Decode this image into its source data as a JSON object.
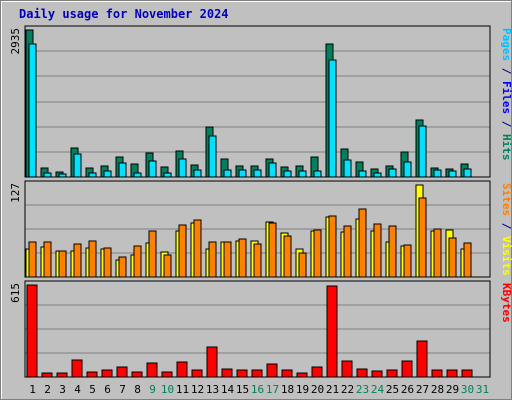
{
  "title": "Daily usage for November 2024",
  "colors": {
    "background": "#c0c0c0",
    "plot_bg": "#c0c0c0",
    "grid": "#808080",
    "hits": "#00805c",
    "files": "#00e0ff",
    "sites": "#ff8000",
    "visits": "#ffff00",
    "kbytes": "#ff0000",
    "weekday_label": "#000000",
    "weekend_label": "#00805c",
    "title": "#0000c0"
  },
  "chart_data": [
    {
      "type": "bar",
      "panel": "pages-files-hits",
      "categories": [
        "1",
        "2",
        "3",
        "4",
        "5",
        "6",
        "7",
        "8",
        "9",
        "10",
        "11",
        "12",
        "13",
        "14",
        "15",
        "16",
        "17",
        "18",
        "19",
        "20",
        "21",
        "22",
        "23",
        "24",
        "25",
        "26",
        "27",
        "28",
        "29",
        "30",
        "31"
      ],
      "ymax_label": "2935",
      "ylim": [
        0,
        2935
      ],
      "side_labels": [
        {
          "text": "Pages",
          "color": "#00c0ff"
        },
        {
          "text": " / ",
          "color": "#000080"
        },
        {
          "text": "Files",
          "color": "#0000ff"
        },
        {
          "text": " / ",
          "color": "#000080"
        },
        {
          "text": "Hits",
          "color": "#00805c"
        }
      ],
      "series": [
        {
          "key": "hits",
          "values": [
            2935,
            175,
            100,
            585,
            175,
            210,
            400,
            255,
            470,
            190,
            510,
            230,
            1000,
            355,
            225,
            215,
            365,
            190,
            210,
            395,
            2660,
            550,
            290,
            165,
            215,
            490,
            1145,
            175,
            155,
            255,
            0
          ]
        },
        {
          "key": "files",
          "values": [
            2650,
            70,
            55,
            460,
            80,
            110,
            275,
            80,
            310,
            85,
            350,
            140,
            820,
            140,
            140,
            140,
            280,
            110,
            120,
            125,
            2330,
            345,
            125,
            80,
            150,
            305,
            1010,
            140,
            120,
            150,
            0
          ]
        }
      ]
    },
    {
      "type": "bar",
      "panel": "sites-visits",
      "categories": [
        "1",
        "2",
        "3",
        "4",
        "5",
        "6",
        "7",
        "8",
        "9",
        "10",
        "11",
        "12",
        "13",
        "14",
        "15",
        "16",
        "17",
        "18",
        "19",
        "20",
        "21",
        "22",
        "23",
        "24",
        "25",
        "26",
        "27",
        "28",
        "29",
        "30",
        "31"
      ],
      "ymax_label": "127",
      "ylim": [
        0,
        127
      ],
      "side_labels": [
        {
          "text": "Sites",
          "color": "#ff8000"
        },
        {
          "text": " / ",
          "color": "#000080"
        },
        {
          "text": "Visits",
          "color": "#ffff00"
        }
      ],
      "series": [
        {
          "key": "visits",
          "values": [
            38,
            41,
            36,
            36,
            40,
            38,
            23,
            31,
            47,
            34,
            64,
            74,
            38,
            49,
            50,
            50,
            76,
            61,
            38,
            63,
            83,
            62,
            80,
            64,
            49,
            43,
            127,
            63,
            65,
            39,
            0
          ]
        },
        {
          "key": "sites",
          "values": [
            48,
            48,
            36,
            45,
            50,
            40,
            28,
            43,
            64,
            30,
            72,
            78,
            48,
            49,
            53,
            45,
            75,
            57,
            33,
            65,
            84,
            70,
            94,
            73,
            70,
            44,
            109,
            66,
            54,
            47,
            0
          ]
        }
      ]
    },
    {
      "type": "bar",
      "panel": "kbytes",
      "categories": [
        "1",
        "2",
        "3",
        "4",
        "5",
        "6",
        "7",
        "8",
        "9",
        "10",
        "11",
        "12",
        "13",
        "14",
        "15",
        "16",
        "17",
        "18",
        "19",
        "20",
        "21",
        "22",
        "23",
        "24",
        "25",
        "26",
        "27",
        "28",
        "29",
        "30",
        "31"
      ],
      "ymax_label": "615",
      "ylim": [
        0,
        615
      ],
      "side_labels": [
        {
          "text": "KBytes",
          "color": "#ff0000"
        }
      ],
      "series": [
        {
          "key": "kbytes",
          "values": [
            615,
            30,
            30,
            115,
            35,
            45,
            70,
            35,
            95,
            35,
            100,
            45,
            200,
            55,
            45,
            45,
            85,
            45,
            30,
            65,
            605,
            110,
            55,
            40,
            45,
            110,
            240,
            50,
            50,
            50,
            0
          ]
        }
      ]
    }
  ],
  "weekend_days": [
    "9",
    "10",
    "16",
    "17",
    "23",
    "24",
    "30",
    "31"
  ]
}
